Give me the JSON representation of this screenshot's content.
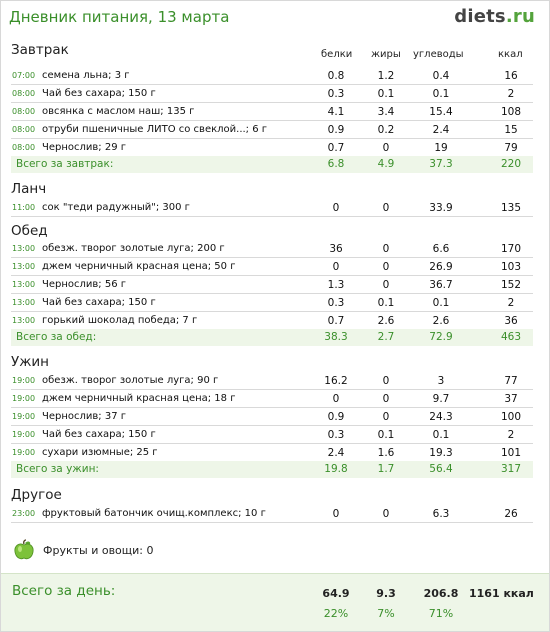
{
  "header": {
    "title": "Дневник питания, 13 марта",
    "logo_main": "diets",
    "logo_tld": ".ru"
  },
  "columns": {
    "protein": "белки",
    "fat": "жиры",
    "carbs": "углеводы",
    "kcal": "ккал"
  },
  "sections": [
    {
      "title": "Завтрак",
      "items": [
        {
          "time": "07:00",
          "name": "семена льна; 3 г",
          "p": "0.8",
          "f": "1.2",
          "c": "0.4",
          "k": "16"
        },
        {
          "time": "08:00",
          "name": "Чай без сахара; 150 г",
          "p": "0.3",
          "f": "0.1",
          "c": "0.1",
          "k": "2"
        },
        {
          "time": "08:00",
          "name": "овсянка с маслом наш; 135 г",
          "p": "4.1",
          "f": "3.4",
          "c": "15.4",
          "k": "108"
        },
        {
          "time": "08:00",
          "name": "отруби пшеничные ЛИТО со свеклой...; 6 г",
          "p": "0.9",
          "f": "0.2",
          "c": "2.4",
          "k": "15"
        },
        {
          "time": "08:00",
          "name": "Чернослив; 29 г",
          "p": "0.7",
          "f": "0",
          "c": "19",
          "k": "79"
        }
      ],
      "total": {
        "label": "Всего за завтрак:",
        "p": "6.8",
        "f": "4.9",
        "c": "37.3",
        "k": "220"
      }
    },
    {
      "title": "Ланч",
      "items": [
        {
          "time": "11:00",
          "name": "сок \"теди радужный\"; 300 г",
          "p": "0",
          "f": "0",
          "c": "33.9",
          "k": "135"
        }
      ]
    },
    {
      "title": "Обед",
      "items": [
        {
          "time": "13:00",
          "name": "обезж. творог золотые луга; 200 г",
          "p": "36",
          "f": "0",
          "c": "6.6",
          "k": "170"
        },
        {
          "time": "13:00",
          "name": "джем черничный красная цена; 50 г",
          "p": "0",
          "f": "0",
          "c": "26.9",
          "k": "103"
        },
        {
          "time": "13:00",
          "name": "Чернослив; 56 г",
          "p": "1.3",
          "f": "0",
          "c": "36.7",
          "k": "152"
        },
        {
          "time": "13:00",
          "name": "Чай без сахара; 150 г",
          "p": "0.3",
          "f": "0.1",
          "c": "0.1",
          "k": "2"
        },
        {
          "time": "13:00",
          "name": "горький шоколад победа; 7 г",
          "p": "0.7",
          "f": "2.6",
          "c": "2.6",
          "k": "36"
        }
      ],
      "total": {
        "label": "Всего за обед:",
        "p": "38.3",
        "f": "2.7",
        "c": "72.9",
        "k": "463"
      }
    },
    {
      "title": "Ужин",
      "items": [
        {
          "time": "19:00",
          "name": "обезж. творог золотые луга; 90 г",
          "p": "16.2",
          "f": "0",
          "c": "3",
          "k": "77"
        },
        {
          "time": "19:00",
          "name": "джем черничный красная цена; 18 г",
          "p": "0",
          "f": "0",
          "c": "9.7",
          "k": "37"
        },
        {
          "time": "19:00",
          "name": "Чернослив; 37 г",
          "p": "0.9",
          "f": "0",
          "c": "24.3",
          "k": "100"
        },
        {
          "time": "19:00",
          "name": "Чай без сахара; 150 г",
          "p": "0.3",
          "f": "0.1",
          "c": "0.1",
          "k": "2"
        },
        {
          "time": "19:00",
          "name": "сухари изюмные; 25 г",
          "p": "2.4",
          "f": "1.6",
          "c": "19.3",
          "k": "101"
        }
      ],
      "total": {
        "label": "Всего за ужин:",
        "p": "19.8",
        "f": "1.7",
        "c": "56.4",
        "k": "317"
      }
    },
    {
      "title": "Другое",
      "items": [
        {
          "time": "23:00",
          "name": "фруктовый батончик очищ.комплекс; 10 г",
          "p": "0",
          "f": "0",
          "c": "6.3",
          "k": "26"
        }
      ]
    }
  ],
  "fruits": {
    "label": "Фрукты и овощи: 0",
    "icon": "apple-icon"
  },
  "day_total": {
    "label": "Всего за день:",
    "p": "64.9",
    "f": "9.3",
    "c": "206.8",
    "k": "1161 ккал",
    "p_pct": "22%",
    "f_pct": "7%",
    "c_pct": "71%"
  },
  "colors": {
    "accent": "#3a8f2a",
    "total_bg": "#eef6e8"
  }
}
